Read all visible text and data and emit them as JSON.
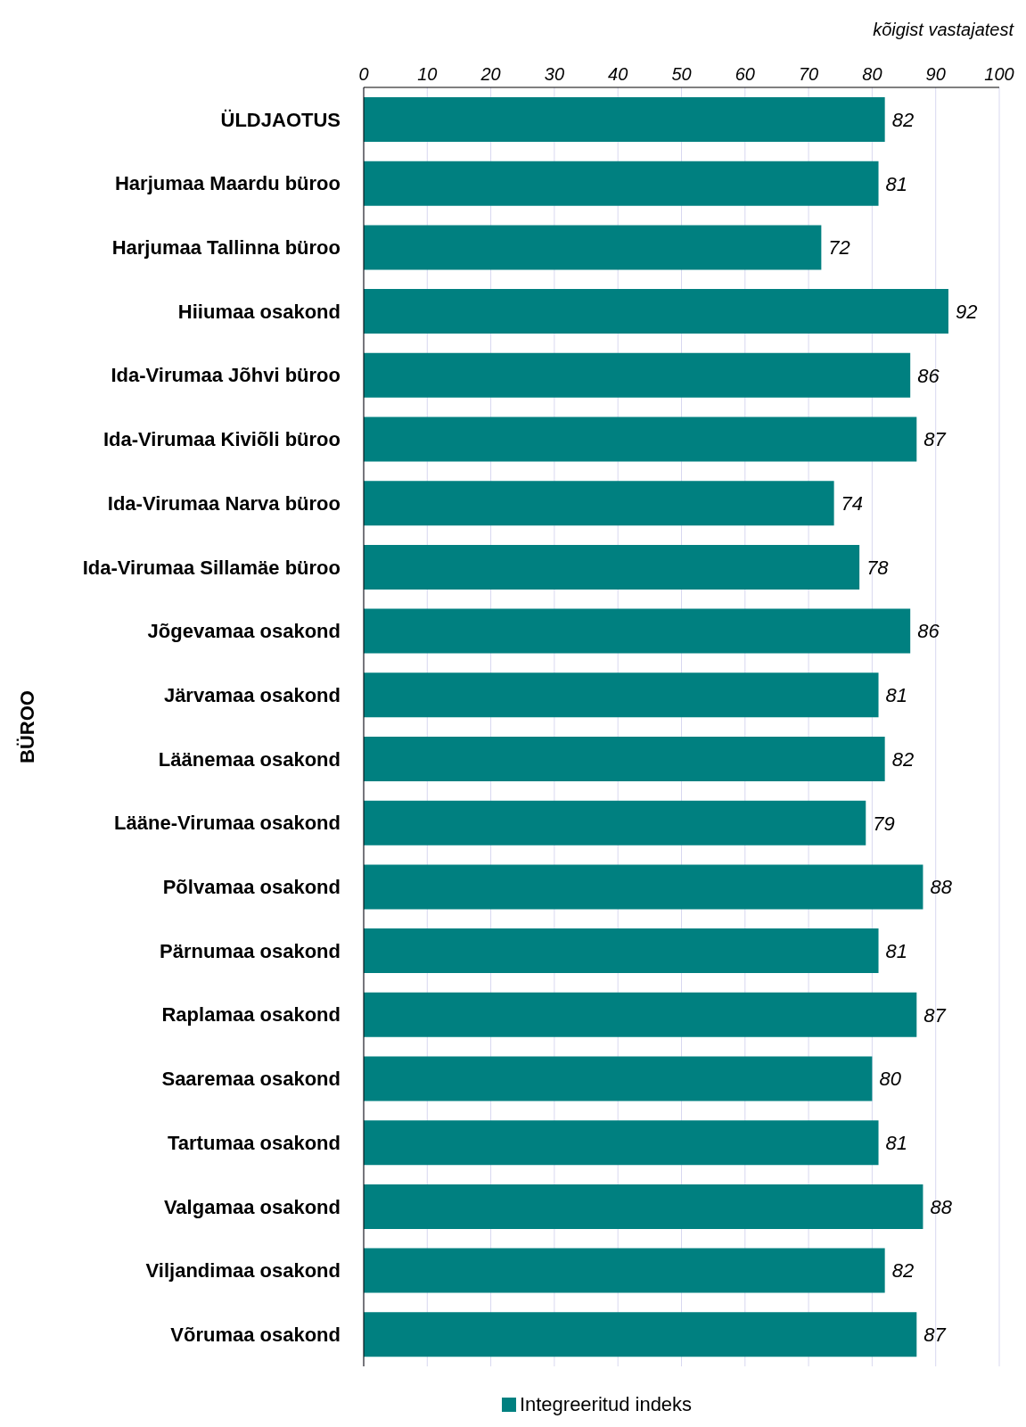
{
  "chart_data": {
    "type": "bar",
    "orientation": "horizontal",
    "xlabel": "kõigist vastajatest",
    "ylabel": "BÜROO",
    "categories": [
      "ÜLDJAOTUS",
      "Harjumaa Maardu büroo",
      "Harjumaa Tallinna büroo",
      "Hiiumaa osakond",
      "Ida-Virumaa Jõhvi büroo",
      "Ida-Virumaa Kiviõli büroo",
      "Ida-Virumaa Narva büroo",
      "Ida-Virumaa Sillamäe büroo",
      "Jõgevamaa osakond",
      "Järvamaa osakond",
      "Läänemaa osakond",
      "Lääne-Virumaa osakond",
      "Põlvamaa osakond",
      "Pärnumaa osakond",
      "Raplamaa osakond",
      "Saaremaa osakond",
      "Tartumaa osakond",
      "Valgamaa osakond",
      "Viljandimaa osakond",
      "Võrumaa osakond"
    ],
    "series": [
      {
        "name": "Integreeritud indeks",
        "color": "#008080",
        "values": [
          82,
          81,
          72,
          92,
          86,
          87,
          74,
          78,
          86,
          81,
          82,
          79,
          88,
          81,
          87,
          80,
          81,
          88,
          82,
          87
        ]
      }
    ],
    "xlim": [
      0,
      100
    ],
    "xticks": [
      0,
      10,
      20,
      30,
      40,
      50,
      60,
      70,
      80,
      90,
      100
    ],
    "grid": "x",
    "legend": "bottom",
    "data_labels": true
  }
}
